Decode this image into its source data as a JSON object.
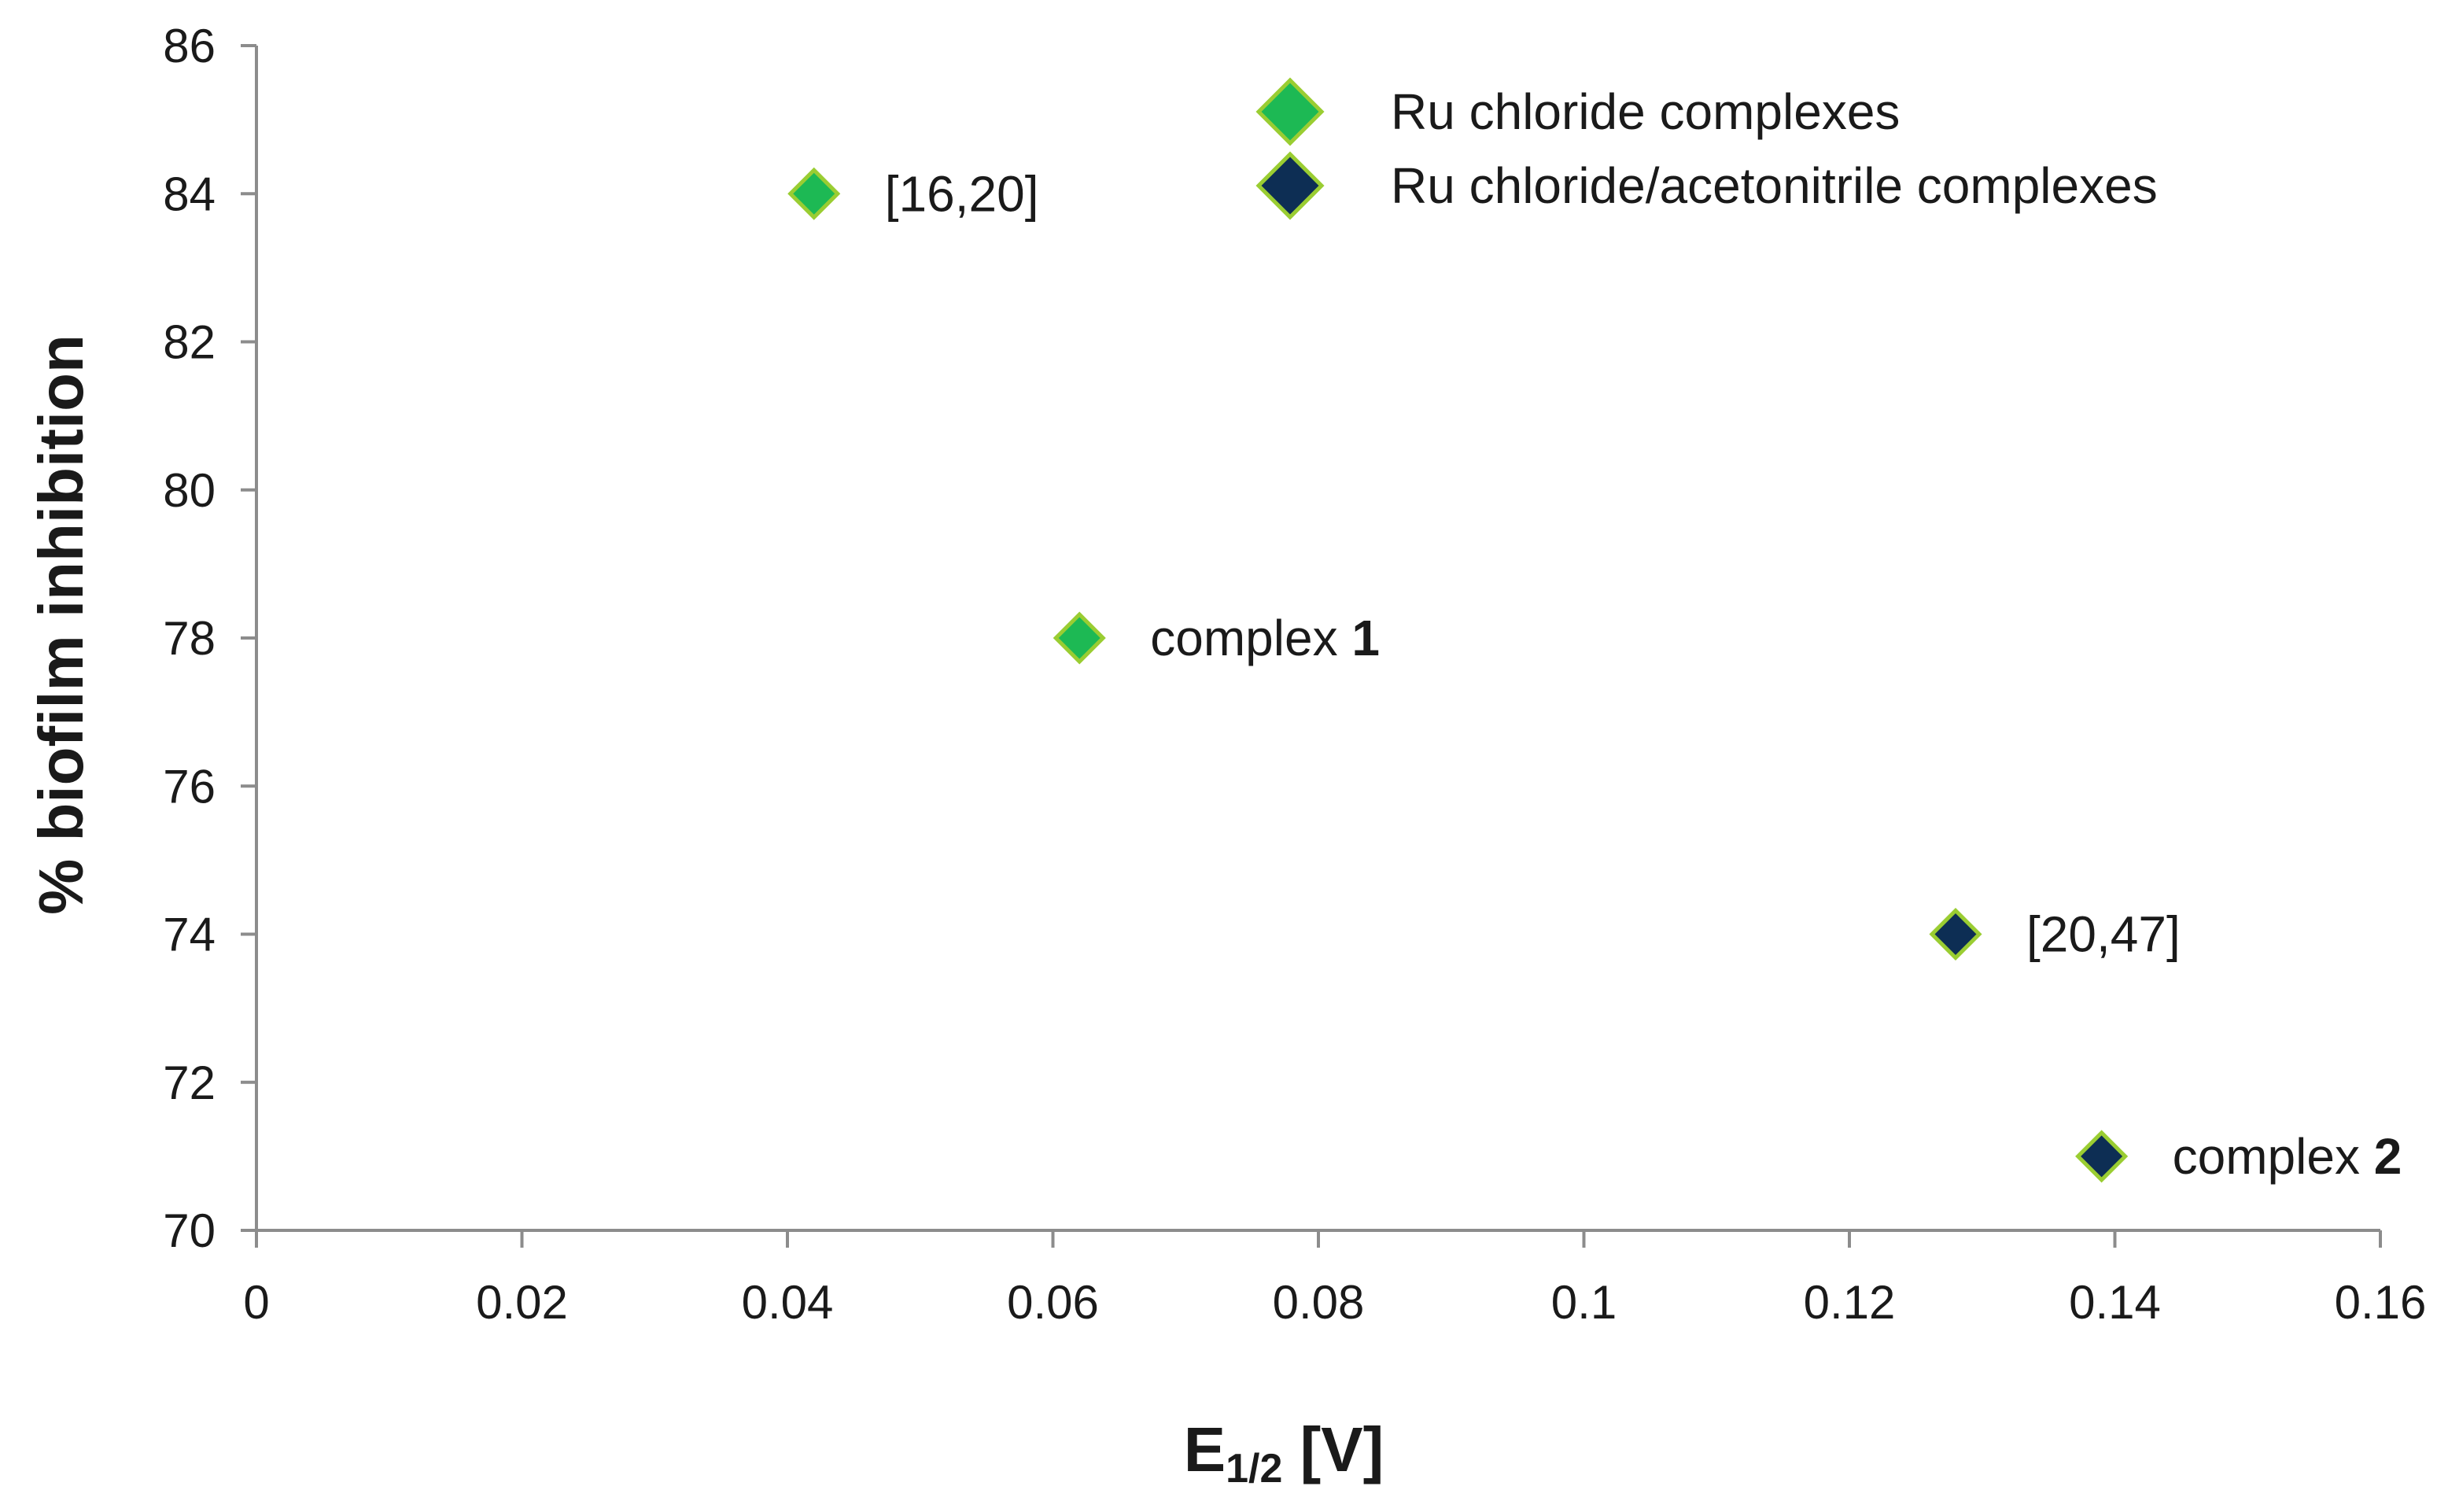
{
  "chart_data": {
    "type": "scatter",
    "title": "",
    "xlabel": {
      "main": "E",
      "subscript": "1/2",
      "suffix": " [V]"
    },
    "ylabel": "% biofilm inhibition",
    "xlim": [
      0,
      0.16
    ],
    "ylim": [
      70,
      86
    ],
    "xticks": [
      0,
      0.02,
      0.04,
      0.06,
      0.08,
      0.1,
      0.12,
      0.14,
      0.16
    ],
    "xtick_labels": [
      "0",
      "0.02",
      "0.04",
      "0.06",
      "0.08",
      "0.1",
      "0.12",
      "0.14",
      "0.16"
    ],
    "yticks": [
      70,
      72,
      74,
      76,
      78,
      80,
      82,
      84,
      86
    ],
    "ytick_labels": [
      "70",
      "72",
      "74",
      "76",
      "78",
      "80",
      "82",
      "84",
      "86"
    ],
    "grid": false,
    "legend_position": "top-center",
    "series": [
      {
        "name": "Ru chloride complexes",
        "color": "#1db954",
        "marker": "diamond",
        "points": [
          {
            "x": 0.042,
            "y": 84,
            "label": "[16,20]",
            "label_bold": ""
          },
          {
            "x": 0.062,
            "y": 78,
            "label": "complex ",
            "label_bold": "1"
          }
        ]
      },
      {
        "name": "Ru chloride/acetonitrile complexes",
        "color": "#0d2e54",
        "marker": "diamond",
        "points": [
          {
            "x": 0.128,
            "y": 74,
            "label": "[20,47]",
            "label_bold": ""
          },
          {
            "x": 0.139,
            "y": 71,
            "label": "complex ",
            "label_bold": "2"
          }
        ]
      }
    ]
  },
  "colors": {
    "axis": "#8c8c8c",
    "marker_outline": "#9acd32"
  }
}
